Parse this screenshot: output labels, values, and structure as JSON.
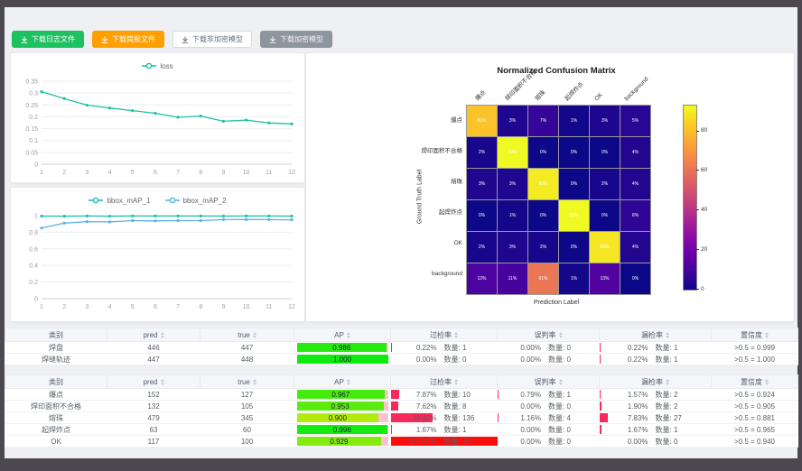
{
  "toolbar": {
    "buttons": [
      {
        "label": "下载日志文件",
        "style": "green"
      },
      {
        "label": "下载简报文件",
        "style": "orange"
      },
      {
        "label": "下载非加密模型",
        "style": "plain"
      },
      {
        "label": "下载加密模型",
        "style": "gray"
      }
    ]
  },
  "chart_data": [
    {
      "type": "line",
      "title": "loss",
      "legend": [
        "loss"
      ],
      "legend_position": "top",
      "x": [
        1,
        2,
        3,
        4,
        5,
        6,
        7,
        8,
        9,
        10,
        11,
        12
      ],
      "series": [
        {
          "name": "loss",
          "color": "#1fc2a3",
          "values": [
            0.306,
            0.277,
            0.249,
            0.237,
            0.226,
            0.215,
            0.198,
            0.203,
            0.181,
            0.186,
            0.174,
            0.17
          ]
        }
      ],
      "ylim": [
        0,
        0.35
      ],
      "yticks": [
        0,
        0.05,
        0.1,
        0.15,
        0.2,
        0.25,
        0.3,
        0.35
      ],
      "ytick_labels": [
        "0",
        "0.05",
        "0.1",
        "0.15",
        "0.2",
        "0.25",
        "0.3",
        "0.35"
      ],
      "grid": true
    },
    {
      "type": "line",
      "title": "bbox_mAP",
      "legend": [
        "bbox_mAP_1",
        "bbox_mAP_2"
      ],
      "legend_position": "top",
      "x": [
        1,
        2,
        3,
        4,
        5,
        6,
        7,
        8,
        9,
        10,
        11,
        12
      ],
      "series": [
        {
          "name": "bbox_mAP_1",
          "color": "#1fc2a3",
          "values": [
            0.995,
            0.993,
            0.996,
            0.993,
            0.996,
            0.996,
            0.996,
            0.996,
            0.995,
            0.996,
            0.996,
            0.995
          ]
        },
        {
          "name": "bbox_mAP_2",
          "color": "#59b1e8",
          "values": [
            0.85,
            0.91,
            0.928,
            0.925,
            0.94,
            0.937,
            0.94,
            0.94,
            0.952,
            0.953,
            0.952,
            0.95
          ]
        }
      ],
      "ylim": [
        0,
        1
      ],
      "yticks": [
        0,
        0.2,
        0.4,
        0.6,
        0.8,
        1
      ],
      "ytick_labels": [
        "0",
        "0.2",
        "0.4",
        "0.6",
        "0.8",
        "1"
      ],
      "grid": true
    },
    {
      "type": "heatmap",
      "title": "Normalized Confusion Matrix",
      "xlabel": "Prediction Label",
      "ylabel": "Ground Truth Label",
      "labels": [
        "爆点",
        "焊印面积不合格",
        "熔珠",
        "起焊炸点",
        "OK",
        "background"
      ],
      "matrix_percent": [
        [
          81,
          3,
          7,
          1,
          3,
          5
        ],
        [
          2,
          93,
          0,
          0,
          0,
          4
        ],
        [
          3,
          3,
          90,
          0,
          2,
          4
        ],
        [
          0,
          1,
          0,
          93,
          0,
          6
        ],
        [
          2,
          3,
          2,
          0,
          89,
          4
        ],
        [
          12,
          11,
          61,
          1,
          13,
          0
        ]
      ],
      "vmax": 93,
      "colorbar_ticks": [
        0,
        20,
        40,
        60,
        80
      ],
      "colormap": "plasma"
    }
  ],
  "table_headers": {
    "class": "类别",
    "pred": "pred",
    "true": "true",
    "ap": "AP",
    "over": "过检率",
    "falsedet": "误判率",
    "miss": "漏检率",
    "conf": "置信度"
  },
  "count_label": "数量:",
  "metrics_tables": [
    {
      "rows": [
        {
          "class": "焊盘",
          "pred": "446",
          "true": "447",
          "ap": "0.986",
          "ap_val": 0.986,
          "over_pct": "0.22%",
          "over_cnt": "数量: 1",
          "over_val": 0.22,
          "falsedet_pct": "0.00%",
          "falsedet_cnt": "数量: 0",
          "falsedet_val": 0,
          "miss_pct": "0.22%",
          "miss_cnt": "数量: 1",
          "miss_val": 0.22,
          "conf": ">0.5 = 0.999"
        },
        {
          "class": "焊缝轨迹",
          "pred": "447",
          "true": "448",
          "ap": "1.000",
          "ap_val": 1.0,
          "over_pct": "0.00%",
          "over_cnt": "数量: 0",
          "over_val": 0,
          "falsedet_pct": "0.00%",
          "falsedet_cnt": "数量: 0",
          "falsedet_val": 0,
          "miss_pct": "0.22%",
          "miss_cnt": "数量: 1",
          "miss_val": 0.22,
          "conf": ">0.5 = 1.000"
        }
      ]
    },
    {
      "rows": [
        {
          "class": "爆点",
          "pred": "152",
          "true": "127",
          "ap": "0.967",
          "ap_val": 0.967,
          "over_pct": "7.87%",
          "over_cnt": "数量: 10",
          "over_val": 7.87,
          "falsedet_pct": "0.79%",
          "falsedet_cnt": "数量: 1",
          "falsedet_val": 0.79,
          "miss_pct": "1.57%",
          "miss_cnt": "数量: 2",
          "miss_val": 1.57,
          "conf": ">0.5 = 0.924"
        },
        {
          "class": "焊印面积不合格",
          "pred": "132",
          "true": "105",
          "ap": "0.953",
          "ap_val": 0.953,
          "over_pct": "7.62%",
          "over_cnt": "数量: 8",
          "over_val": 7.62,
          "falsedet_pct": "0.00%",
          "falsedet_cnt": "数量: 0",
          "falsedet_val": 0,
          "miss_pct": "1.90%",
          "miss_cnt": "数量: 2",
          "miss_val": 1.9,
          "conf": ">0.5 = 0.905"
        },
        {
          "class": "熔珠",
          "pred": "479",
          "true": "345",
          "ap": "0.900",
          "ap_val": 0.9,
          "over_pct": "39.42%",
          "over_cnt": "数量: 136",
          "over_val": 39.42,
          "falsedet_pct": "1.16%",
          "falsedet_cnt": "数量: 4",
          "falsedet_val": 1.16,
          "miss_pct": "7.83%",
          "miss_cnt": "数量: 27",
          "miss_val": 7.83,
          "conf": ">0.5 = 0.881"
        },
        {
          "class": "起焊炸点",
          "pred": "63",
          "true": "60",
          "ap": "0.996",
          "ap_val": 0.996,
          "over_pct": "1.67%",
          "over_cnt": "数量: 1",
          "over_val": 1.67,
          "falsedet_pct": "0.00%",
          "falsedet_cnt": "数量: 0",
          "falsedet_val": 0,
          "miss_pct": "1.67%",
          "miss_cnt": "数量: 1",
          "miss_val": 1.67,
          "conf": ">0.5 = 0.965"
        },
        {
          "class": "OK",
          "pred": "117",
          "true": "100",
          "ap": "0.929",
          "ap_val": 0.929,
          "over_pct": "117.00%",
          "over_cnt": "数量: 117",
          "over_val": 117,
          "falsedet_pct": "0.00%",
          "falsedet_cnt": "数量: 0",
          "falsedet_val": 0,
          "miss_pct": "0.00%",
          "miss_cnt": "数量: 0",
          "miss_val": 0,
          "conf": ">0.5 = 0.940"
        }
      ]
    }
  ]
}
